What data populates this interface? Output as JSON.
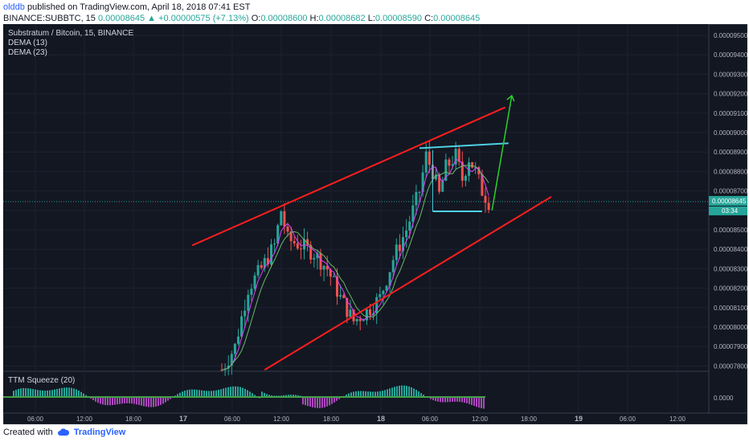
{
  "header": {
    "author": "olddb",
    "published_text": "published on TradingView.com, April 18, 2018 07:41 EST",
    "symbol": "BINANCE:SUBBTC, 15",
    "price": "0.00008645",
    "change": "▲ +0.00000575 (+7.13%)",
    "o_label": "O:",
    "o_value": "0.00008600",
    "h_label": "H:",
    "h_value": "0.00008682",
    "l_label": "L:",
    "l_value": "0.00008590",
    "c_label": "C:",
    "c_value": "0.00008645"
  },
  "legend": {
    "title": "Substratum / Bitcoin, 15, BINANCE",
    "dema13": "DEMA (13)",
    "dema23": "DEMA (23)",
    "ttm": "TTM Squeeze (20)"
  },
  "footer": {
    "created_with": "Created with",
    "brand": "TradingView"
  },
  "colors": {
    "background": "#131722",
    "up": "#26a69a",
    "down": "#ef5350",
    "channel": "#ff1e1e",
    "flag": "#4dd0e1",
    "arrow": "#2bd12b"
  },
  "chart_data": {
    "type": "candlestick",
    "price_axis": {
      "ticks": [
        "0.00009500",
        "0.00009400",
        "0.00009300",
        "0.00009200",
        "0.00009100",
        "0.00009000",
        "0.00008900",
        "0.00008800",
        "0.00008700",
        "0.00008600",
        "0.00008500",
        "0.00008400",
        "0.00008300",
        "0.00008200",
        "0.00008100",
        "0.00008000",
        "0.00007900",
        "0.00007800"
      ],
      "current_price": "0.00008645",
      "countdown": "03:34"
    },
    "time_axis": {
      "ticks": [
        "06:00",
        "12:00",
        "18:00",
        "17",
        "06:00",
        "12:00",
        "18:00",
        "18",
        "06:00",
        "12:00",
        "18:00",
        "19",
        "06:00",
        "12:00"
      ]
    },
    "ttm_axis": {
      "ticks": [
        "0.0000"
      ]
    },
    "price_series": [
      {
        "t": -60,
        "p": 7780
      },
      {
        "t": -56,
        "p": 7900
      },
      {
        "t": -52,
        "p": 8200
      },
      {
        "t": -48,
        "p": 8300
      },
      {
        "t": -44,
        "p": 8420
      },
      {
        "t": -42,
        "p": 8600
      },
      {
        "t": -40,
        "p": 8450
      },
      {
        "t": -36,
        "p": 8420
      },
      {
        "t": -32,
        "p": 8380
      },
      {
        "t": -28,
        "p": 8300
      },
      {
        "t": -24,
        "p": 8150
      },
      {
        "t": -20,
        "p": 8030
      },
      {
        "t": -16,
        "p": 8080
      },
      {
        "t": -12,
        "p": 8150
      },
      {
        "t": -8,
        "p": 8350
      },
      {
        "t": -4,
        "p": 8500
      },
      {
        "t": 0,
        "p": 8700
      },
      {
        "t": 2,
        "p": 8880
      },
      {
        "t": 4,
        "p": 8800
      },
      {
        "t": 6,
        "p": 8680
      },
      {
        "t": 8,
        "p": 8820
      },
      {
        "t": 11,
        "p": 8880
      },
      {
        "t": 13,
        "p": 8760
      },
      {
        "t": 15,
        "p": 8870
      },
      {
        "t": 17,
        "p": 8800
      },
      {
        "t": 19,
        "p": 8700
      },
      {
        "t": 21,
        "p": 8645
      }
    ],
    "annotations": {
      "channel_upper": [
        {
          "t": -69,
          "p": 8420
        },
        {
          "t": 26,
          "p": 9130
        }
      ],
      "channel_lower": [
        {
          "t": -47,
          "p": 7780
        },
        {
          "t": 40,
          "p": 8670
        }
      ],
      "flag_top": [
        {
          "t": 0,
          "p": 8920
        },
        {
          "t": 27,
          "p": 8945
        }
      ],
      "flag_bottom": [
        {
          "t": 4,
          "p": 8595
        },
        {
          "t": 19,
          "p": 8595
        }
      ],
      "flag_left": [
        {
          "t": 4,
          "p": 8910
        },
        {
          "t": 4,
          "p": 8595
        }
      ],
      "arrow": [
        {
          "t": 22,
          "p": 8600
        },
        {
          "t": 28,
          "p": 9190
        }
      ]
    },
    "ttm_histogram_note": "momentum histogram oscillating around 0.0000"
  }
}
